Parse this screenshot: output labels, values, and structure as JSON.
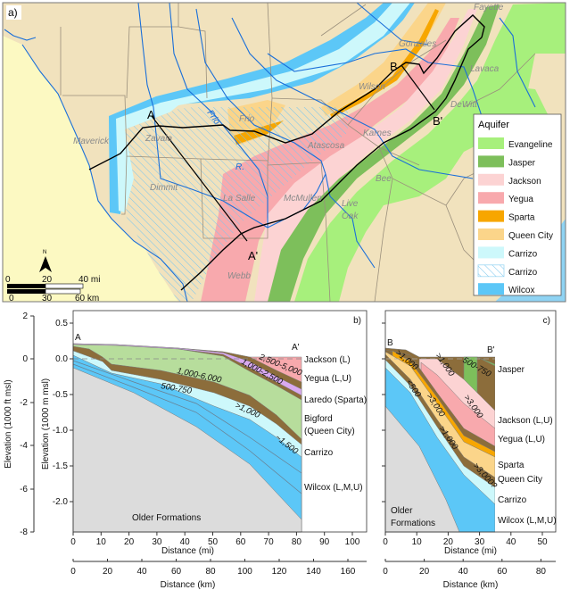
{
  "colors": {
    "evangeline": "#a7f07c",
    "jasper": "#7dbf5b",
    "jackson": "#fcd3d3",
    "yegua": "#f8a9ad",
    "sparta": "#f7a600",
    "queen_city": "#fbd58a",
    "carrizo": "#cdf8fb",
    "carrizo_hatch": "#7cc6ee",
    "wilcox": "#5cc7f7",
    "land": "#f1e2bd",
    "mexico": "#fcf9c2",
    "water": "#8fd3f3",
    "river": "#1a6fd9",
    "confining_brown": "#8c6d3b",
    "queen_city_section": "#b7dd9c",
    "laredo_section": "#d9a9f0",
    "older": "#dcdcdc"
  },
  "map": {
    "panel_label": "a)",
    "counties": [
      "Maverick",
      "Zavala",
      "Dimmit",
      "La Salle",
      "McMullen",
      "Webb",
      "Frio",
      "Atascosa",
      "Wilson",
      "Gonzales",
      "Fayette",
      "Lavaca",
      "DeWitt",
      "Karnes",
      "Bee",
      "Live",
      "Oak"
    ],
    "rivers": [
      "Frio",
      "R."
    ],
    "section_points": [
      "A",
      "A'",
      "B",
      "B'"
    ],
    "north": "N",
    "scale_mi": [
      "0",
      "20",
      "40 mi"
    ],
    "scale_km": [
      "0",
      "30",
      "60 km"
    ],
    "legend": {
      "title": "Aquifer",
      "items": [
        {
          "label": "Evangeline",
          "color": "#a7f07c",
          "pattern": "solid"
        },
        {
          "label": "Jasper",
          "color": "#7dbf5b",
          "pattern": "solid"
        },
        {
          "label": "Jackson",
          "color": "#fcd3d3",
          "pattern": "solid"
        },
        {
          "label": "Yegua",
          "color": "#f8a9ad",
          "pattern": "solid"
        },
        {
          "label": "Sparta",
          "color": "#f7a600",
          "pattern": "solid"
        },
        {
          "label": "Queen City",
          "color": "#fbd58a",
          "pattern": "solid"
        },
        {
          "label": "Carrizo",
          "color": "#cdf8fb",
          "pattern": "solid"
        },
        {
          "label": "Carrizo",
          "color": "#7cc6ee",
          "pattern": "hatched"
        },
        {
          "label": "Wilcox",
          "color": "#5cc7f7",
          "pattern": "solid"
        }
      ]
    }
  },
  "section_b": {
    "panel_label": "b)",
    "start": "A",
    "end": "A'",
    "y_ft_label": "Elevation (1000 ft msl)",
    "y_m_label": "Elevation (1000 m msl)",
    "x_mi_label": "Distance (mi)",
    "x_km_label": "Distance (km)",
    "y_ft_ticks": [
      "2",
      "0",
      "-2",
      "-4",
      "-6",
      "-8"
    ],
    "y_m_ticks": [
      "0.5",
      "0.0",
      "-0.5",
      "-1.0",
      "-1.5",
      "-2.0"
    ],
    "x_mi_ticks": [
      "0",
      "10",
      "20",
      "30",
      "40",
      "50",
      "60",
      "70",
      "80",
      "90",
      "100"
    ],
    "x_km_ticks": [
      "0",
      "20",
      "40",
      "60",
      "80",
      "100",
      "120",
      "140",
      "160"
    ],
    "units": [
      "Jackson (L)",
      "Yegua (L,U)",
      "Laredo (Sparta)",
      "Bigford",
      "(Queen City)",
      "Carrizo",
      "Wilcox (L,M,U)"
    ],
    "older": "Older Formations",
    "thickness": [
      "1,000-6,000",
      "500-750",
      "1,000-2,500",
      "2,500-5,000",
      ">1,000",
      "~1,500"
    ]
  },
  "section_c": {
    "panel_label": "c)",
    "start": "B",
    "end": "B'",
    "x_mi_label": "Distance (mi)",
    "x_km_label": "Distance (km)",
    "x_mi_ticks": [
      "0",
      "10",
      "20",
      "30",
      "40",
      "50"
    ],
    "x_km_ticks": [
      "0",
      "20",
      "40",
      "60",
      "80"
    ],
    "units": [
      "Jasper",
      "Jackson (L,U)",
      "Yegua (L,U)",
      "Sparta",
      "Queen City",
      "Carrizo",
      "Wilcox (L,M,U)"
    ],
    "older": [
      "Older",
      "Formations"
    ],
    "thickness": [
      ">1,000",
      ">1,000",
      "500-750",
      "<500",
      ">3,000",
      ">3,000",
      ">1,000",
      ">3,000?"
    ]
  }
}
